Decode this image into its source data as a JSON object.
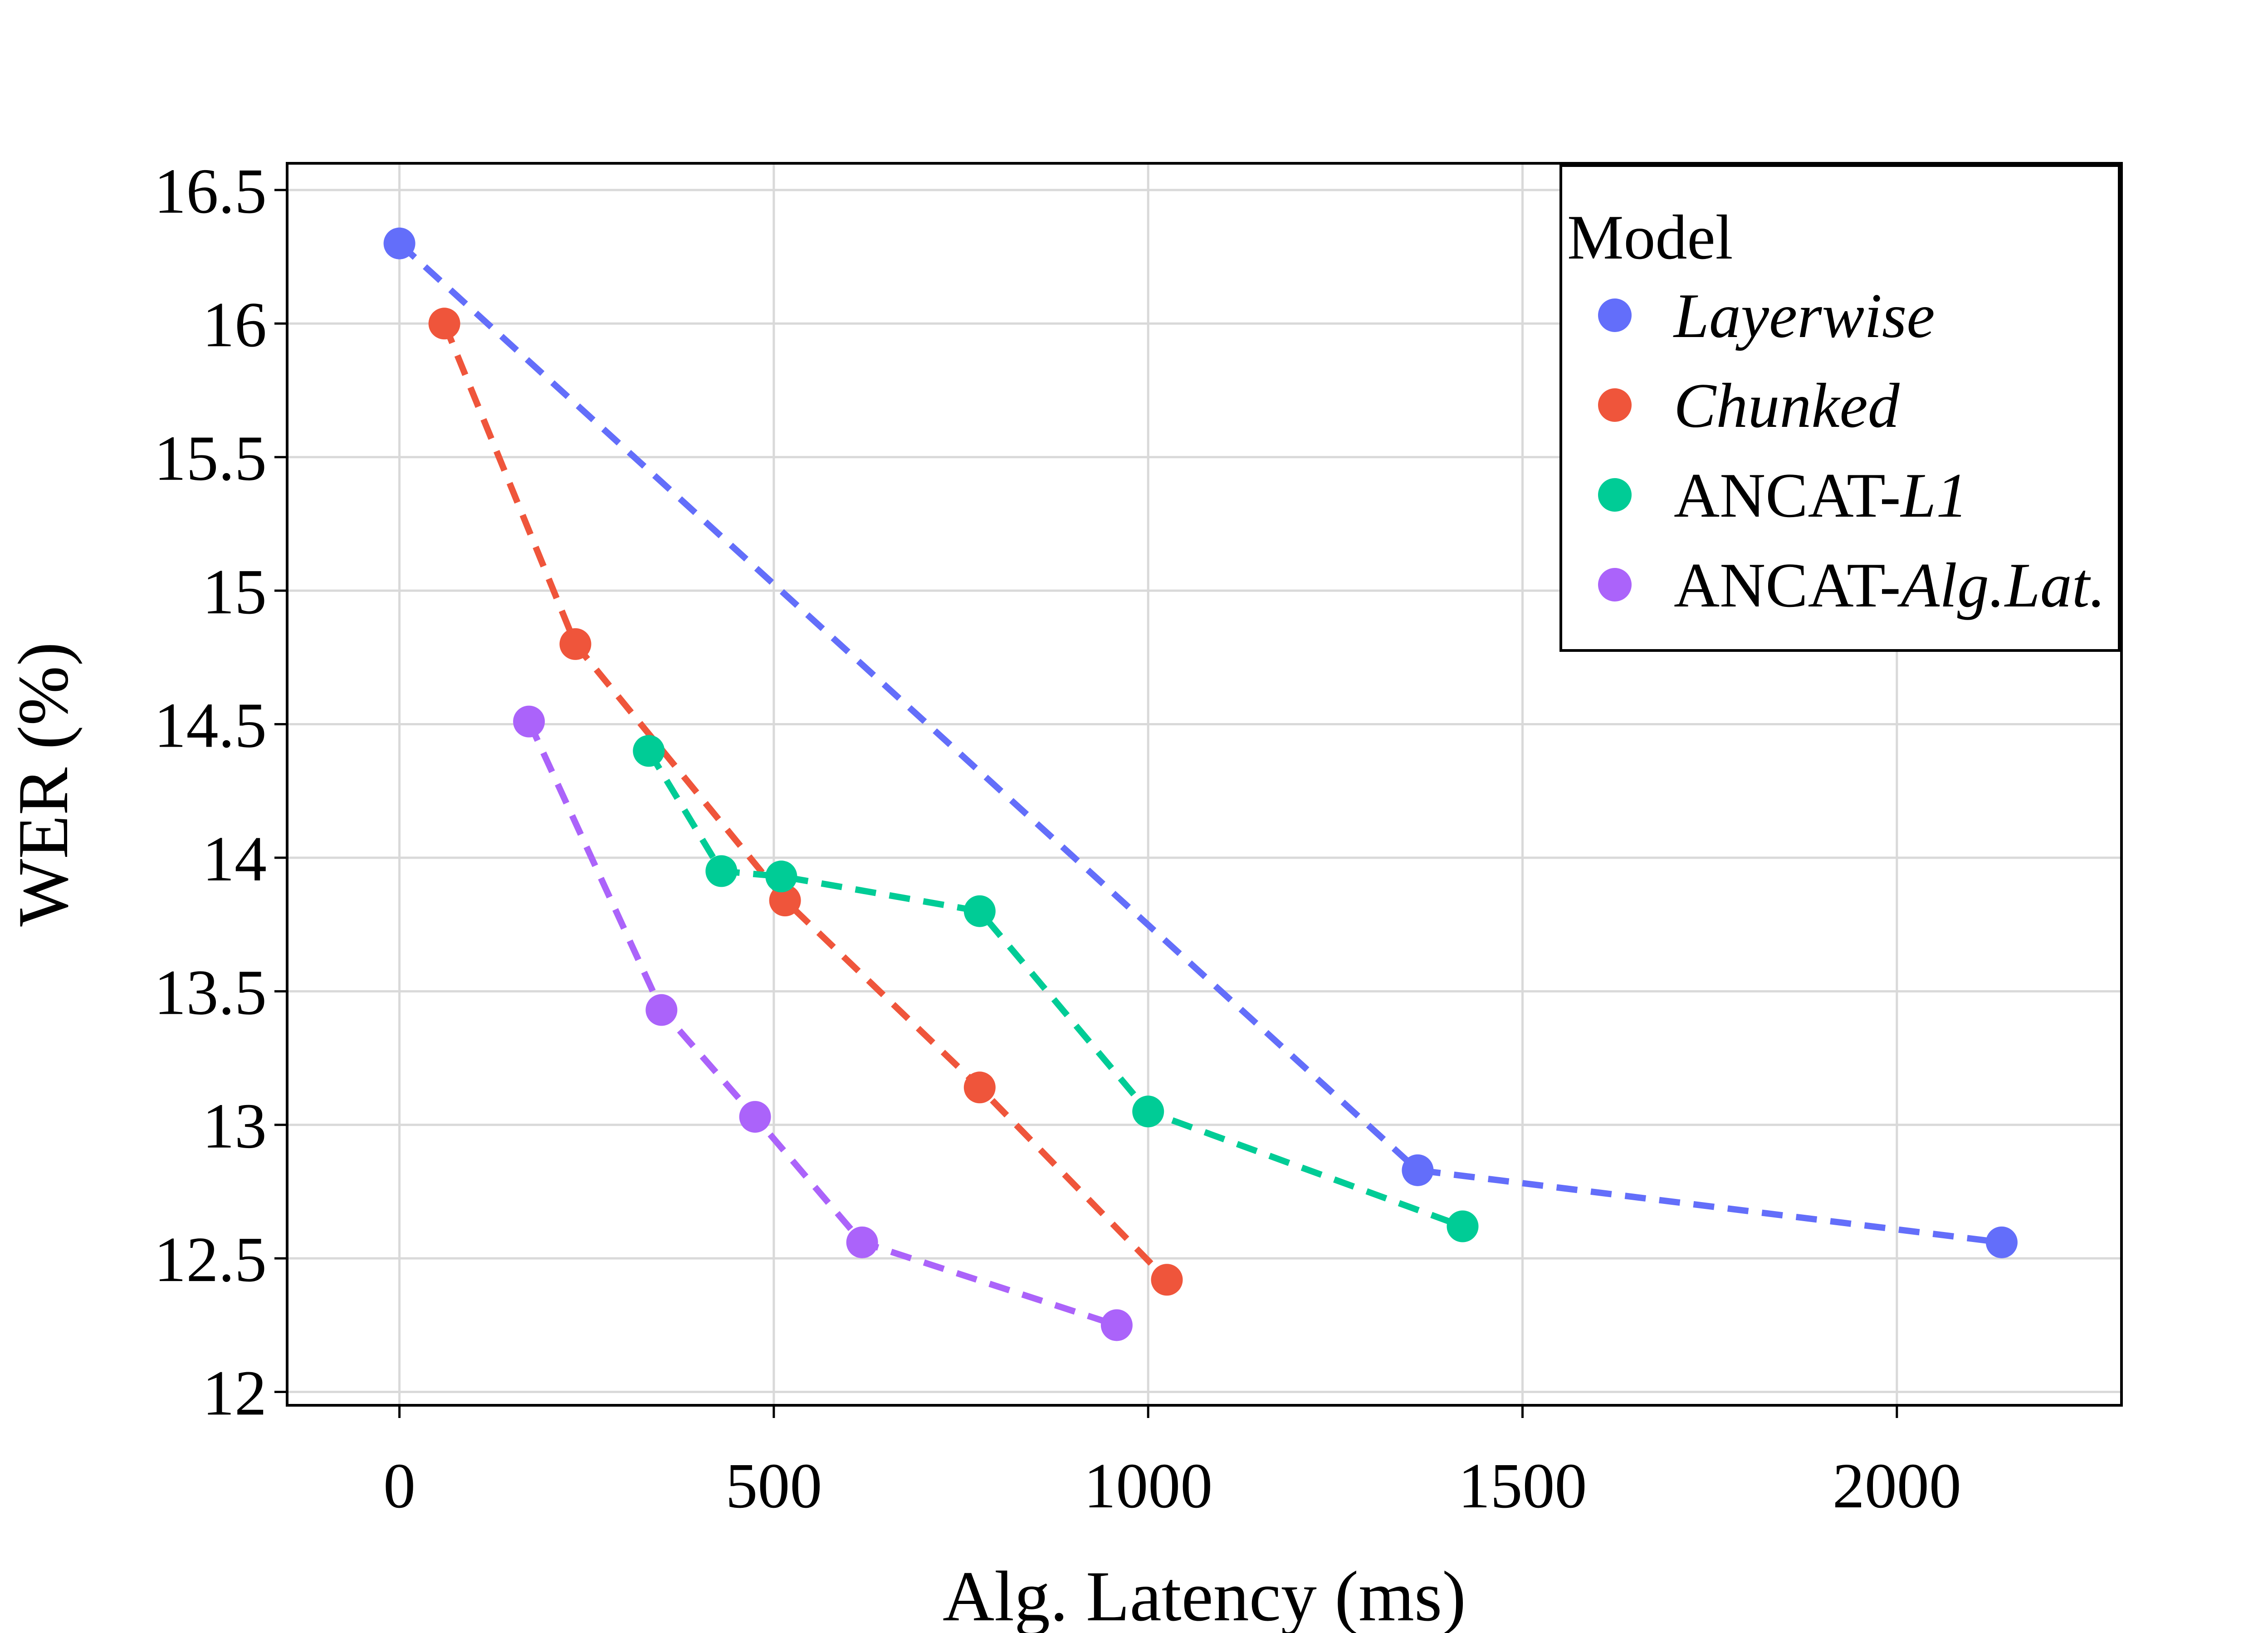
{
  "chart_data": {
    "type": "scatter",
    "title": "",
    "xlabel": "Alg. Latency (ms)",
    "ylabel": "WER (%)",
    "xlim": [
      -150,
      2300
    ],
    "ylim": [
      11.95,
      16.6
    ],
    "xticks": [
      0,
      500,
      1000,
      1500,
      2000
    ],
    "xtick_labels": [
      "0",
      "500",
      "1000",
      "1500",
      "2000"
    ],
    "yticks": [
      12,
      12.5,
      13,
      13.5,
      14,
      14.5,
      15,
      15.5,
      16,
      16.5
    ],
    "ytick_labels": [
      "12",
      "12.5",
      "13",
      "13.5",
      "14",
      "14.5",
      "15",
      "15.5",
      "16",
      "16.5"
    ],
    "grid": true,
    "legend": {
      "title": "Model",
      "position": "top-right",
      "entries": [
        {
          "prefix": "",
          "italic": "Layerwise"
        },
        {
          "prefix": "",
          "italic": "Chunked"
        },
        {
          "prefix": "ANCAT-",
          "italic": "L1"
        },
        {
          "prefix": "ANCAT-",
          "italic": "Alg.Lat."
        }
      ]
    },
    "series": [
      {
        "name": "Layerwise",
        "color": "#636efa",
        "x": [
          0,
          1360,
          2140
        ],
        "y": [
          16.3,
          12.83,
          12.56
        ]
      },
      {
        "name": "Chunked",
        "color": "#ef553b",
        "x": [
          60,
          235,
          515,
          775,
          1025
        ],
        "y": [
          16.0,
          14.8,
          13.84,
          13.14,
          12.42
        ]
      },
      {
        "name": "ANCAT-L1",
        "color": "#00cc96",
        "x": [
          333,
          430,
          510,
          775,
          1000,
          1420
        ],
        "y": [
          14.4,
          13.95,
          13.93,
          13.8,
          13.05,
          12.62
        ]
      },
      {
        "name": "ANCAT-Alg.Lat.",
        "color": "#ab63fa",
        "x": [
          173,
          350,
          475,
          618,
          958
        ],
        "y": [
          14.51,
          13.43,
          13.03,
          12.56,
          12.25
        ]
      }
    ]
  }
}
